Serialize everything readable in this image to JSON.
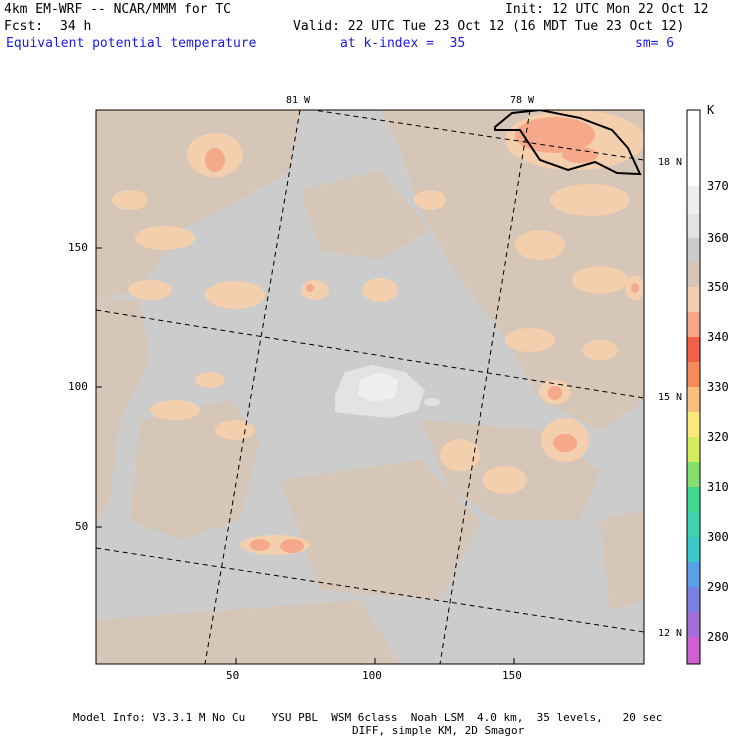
{
  "header": {
    "model": "4km EM-WRF -- NCAR/MMM for TC",
    "init": "Init: 12 UTC Mon 22 Oct 12",
    "fcst_label": "Fcst:",
    "fcst_value": "34 h",
    "valid": "Valid: 22 UTC Tue 23 Oct 12 (16 MDT Tue 23 Oct 12)",
    "field": "Equivalent potential temperature",
    "kindex": "at k-index =  35",
    "sm": "sm= 6"
  },
  "map": {
    "x_ticks": [
      "50",
      "100",
      "150"
    ],
    "y_ticks": [
      "150",
      "100",
      "50"
    ],
    "lon_labels": [
      "81 W",
      "78 W"
    ],
    "lat_labels": [
      "18 N",
      "15 N",
      "12 N"
    ]
  },
  "colorbar": {
    "unit": "K",
    "levels": [
      "370",
      "360",
      "350",
      "340",
      "330",
      "320",
      "310",
      "300",
      "290",
      "280"
    ],
    "colors": [
      "#ffffff",
      "#efefef",
      "#e3e3e3",
      "#cccccc",
      "#d6c6b8",
      "#f3cfae",
      "#f5a88a",
      "#f26048",
      "#f58a5a",
      "#f8c07a",
      "#f8ea7a",
      "#d4ec60",
      "#86e070",
      "#40d890",
      "#38c8c8",
      "#5aa0e8",
      "#7880e0",
      "#a070d8",
      "#d060d0"
    ],
    "colors_note": "bottom-to-top reversed list, top first"
  },
  "footer": {
    "line1": "Model Info: V3.3.1 M No Cu    YSU PBL  WSM 6class  Noah LSM  4.0 km,  35 levels,   20 sec",
    "line2": "DIFF, simple KM, 2D Smagor"
  }
}
